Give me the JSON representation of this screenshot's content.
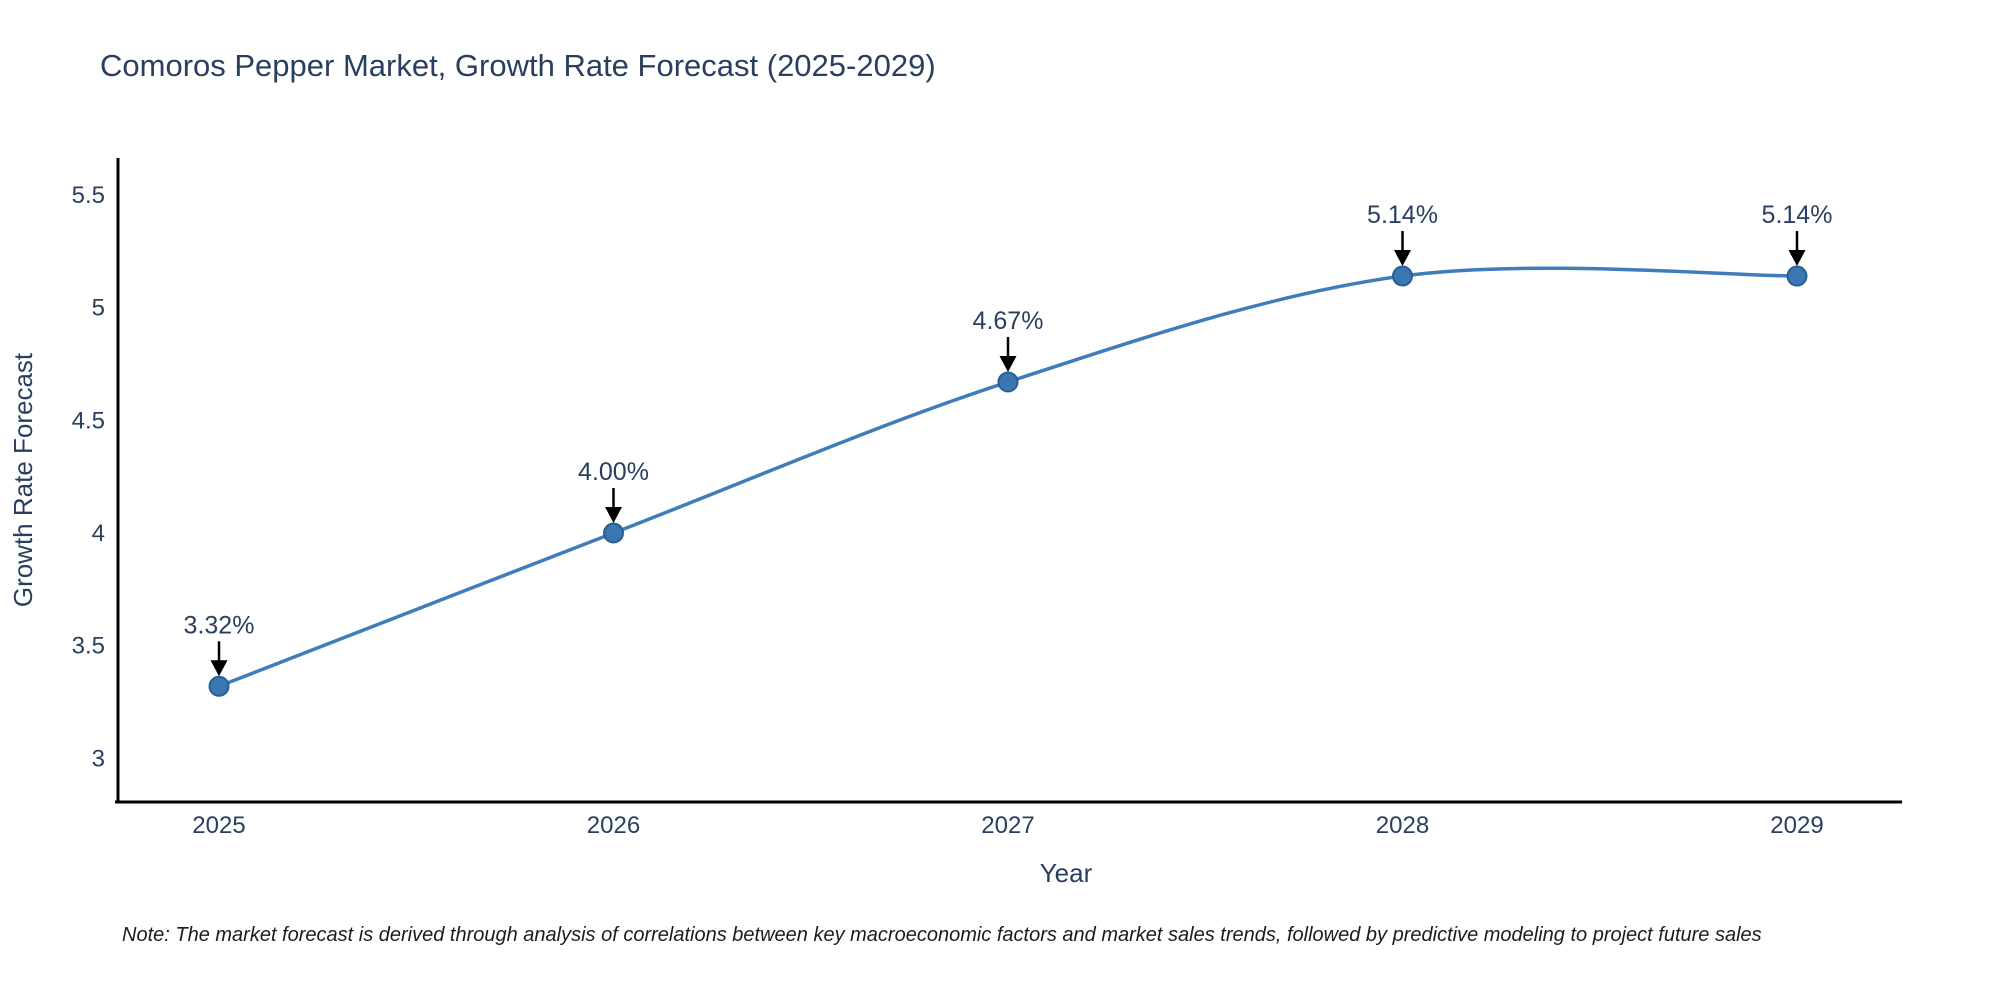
{
  "title": "Comoros Pepper Market, Growth Rate Forecast (2025-2029)",
  "note": "Note: The market forecast is derived through analysis of correlations between key macroeconomic factors and market sales trends, followed by predictive modeling to project future sales",
  "colors": {
    "line": "#3e7cba",
    "marker_fill": "#3a77b2",
    "marker_edge": "#2a5f94",
    "axis_line": "#000000",
    "text": "#2a3f5f",
    "annotation_arrow": "#000000",
    "background": "#ffffff"
  },
  "chart_data": {
    "type": "line",
    "title": "Comoros Pepper Market, Growth Rate Forecast (2025-2029)",
    "xlabel": "Year",
    "ylabel": "Growth Rate Forecast",
    "x": [
      2025,
      2026,
      2027,
      2028,
      2029
    ],
    "values": [
      3.32,
      4.0,
      4.67,
      5.14,
      5.14
    ],
    "point_labels": [
      "3.32%",
      "4.00%",
      "4.67%",
      "5.14%",
      "5.14%"
    ],
    "xticks": [
      "2025",
      "2026",
      "2027",
      "2028",
      "2029"
    ],
    "yticks": [
      3,
      3.5,
      4,
      4.5,
      5,
      5.5
    ],
    "ytick_labels": [
      "3",
      "3.5",
      "4",
      "4.5",
      "5",
      "5.5"
    ],
    "ylim": [
      2.8,
      5.66
    ],
    "line_shape": "spline",
    "grid": false,
    "legend_position": "none",
    "annotations": "value labels above each point with downward arrows"
  }
}
